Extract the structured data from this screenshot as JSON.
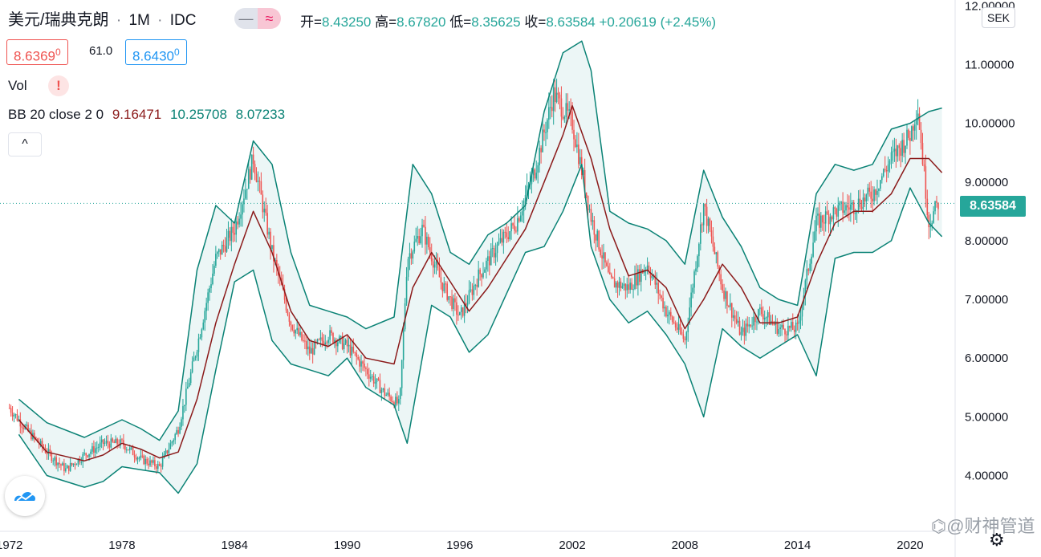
{
  "header": {
    "symbol": "美元/瑞典克朗",
    "interval": "1M",
    "source": "IDC",
    "separator": "·"
  },
  "ohlc": {
    "open_label": "开=",
    "open": "8.43250",
    "high_label": "高=",
    "high": "8.67820",
    "low_label": "低=",
    "low": "8.35625",
    "close_label": "收=",
    "close": "8.63584",
    "change": "+0.20619",
    "change_pct": "(+2.45%)"
  },
  "quote": {
    "bid": "8.6369",
    "bid_sup": "0",
    "spread": "61.0",
    "ask": "8.6430",
    "ask_sup": "0"
  },
  "volume": {
    "label": "Vol",
    "warning": "!"
  },
  "bb_legend": {
    "label": "BB 20 close 2 0",
    "middle": "9.16471",
    "upper": "10.25708",
    "lower": "8.07233"
  },
  "controls": {
    "collapse": "^",
    "toggle_left": "—",
    "toggle_right": "≈"
  },
  "axis": {
    "currency": "SEK",
    "last_price_label": "8.63584",
    "settings_icon": "gear-icon",
    "logo_icon": "tradingview-logo-icon"
  },
  "watermark": "⌬@财神管道",
  "colors": {
    "up": "#26a69a",
    "down": "#ef5350",
    "bb_middle": "#8b1a1a",
    "bb_band": "#0a8275",
    "bb_fill": "#e9f4f5"
  },
  "chart_data": {
    "type": "candlestick",
    "xlabel": "",
    "ylabel": "",
    "x_ticks": [
      "1972",
      "1978",
      "1984",
      "1990",
      "1996",
      "2002",
      "2008",
      "2014",
      "2020"
    ],
    "y_ticks": [
      "4.00000",
      "5.00000",
      "6.00000",
      "7.00000",
      "8.00000",
      "9.00000",
      "10.00000",
      "11.00000",
      "12.00000"
    ],
    "xlim": [
      1971.5,
      2022.4
    ],
    "ylim": [
      3.05,
      12.1
    ],
    "last_price": 8.63584,
    "series": [
      {
        "name": "price",
        "points": [
          [
            1972.0,
            5.15
          ],
          [
            1973.0,
            4.75
          ],
          [
            1974.0,
            4.4
          ],
          [
            1975.0,
            4.1
          ],
          [
            1976.0,
            4.35
          ],
          [
            1977.0,
            4.55
          ],
          [
            1978.0,
            4.55
          ],
          [
            1979.0,
            4.28
          ],
          [
            1980.0,
            4.15
          ],
          [
            1981.0,
            4.8
          ],
          [
            1982.0,
            6.2
          ],
          [
            1983.0,
            7.7
          ],
          [
            1984.0,
            8.2
          ],
          [
            1985.0,
            9.4
          ],
          [
            1986.0,
            7.8
          ],
          [
            1987.0,
            6.6
          ],
          [
            1988.0,
            6.1
          ],
          [
            1989.0,
            6.4
          ],
          [
            1990.0,
            6.2
          ],
          [
            1991.0,
            5.8
          ],
          [
            1992.0,
            5.4
          ],
          [
            1992.8,
            5.2
          ],
          [
            1993.2,
            7.7
          ],
          [
            1994.0,
            8.2
          ],
          [
            1995.0,
            7.3
          ],
          [
            1996.0,
            6.7
          ],
          [
            1997.0,
            7.4
          ],
          [
            1998.0,
            7.9
          ],
          [
            1999.0,
            8.3
          ],
          [
            2000.0,
            9.2
          ],
          [
            2001.0,
            10.5
          ],
          [
            2002.0,
            10.0
          ],
          [
            2003.0,
            8.4
          ],
          [
            2004.0,
            7.3
          ],
          [
            2005.0,
            7.2
          ],
          [
            2006.0,
            7.6
          ],
          [
            2007.0,
            6.8
          ],
          [
            2008.0,
            6.3
          ],
          [
            2009.0,
            8.6
          ],
          [
            2010.0,
            7.2
          ],
          [
            2011.0,
            6.4
          ],
          [
            2012.0,
            6.8
          ],
          [
            2013.0,
            6.5
          ],
          [
            2014.0,
            6.5
          ],
          [
            2015.0,
            8.3
          ],
          [
            2016.0,
            8.5
          ],
          [
            2017.0,
            8.6
          ],
          [
            2018.0,
            8.8
          ],
          [
            2019.0,
            9.4
          ],
          [
            2020.0,
            9.8
          ],
          [
            2020.4,
            10.3
          ],
          [
            2021.0,
            8.3
          ],
          [
            2021.5,
            8.64
          ]
        ]
      },
      {
        "name": "bb_middle",
        "points": [
          [
            1972.5,
            4.95
          ],
          [
            1974.0,
            4.4
          ],
          [
            1976.0,
            4.25
          ],
          [
            1977.0,
            4.35
          ],
          [
            1978.0,
            4.55
          ],
          [
            1979.0,
            4.45
          ],
          [
            1980.0,
            4.3
          ],
          [
            1981.0,
            4.4
          ],
          [
            1982.0,
            5.3
          ],
          [
            1983.0,
            6.6
          ],
          [
            1984.0,
            7.6
          ],
          [
            1985.0,
            8.5
          ],
          [
            1986.0,
            7.8
          ],
          [
            1987.0,
            6.8
          ],
          [
            1988.0,
            6.3
          ],
          [
            1989.0,
            6.2
          ],
          [
            1990.0,
            6.4
          ],
          [
            1991.0,
            6.0
          ],
          [
            1992.5,
            5.9
          ],
          [
            1993.5,
            7.2
          ],
          [
            1994.5,
            7.8
          ],
          [
            1995.5,
            7.3
          ],
          [
            1996.5,
            6.8
          ],
          [
            1997.5,
            7.2
          ],
          [
            1998.5,
            7.7
          ],
          [
            1999.5,
            8.2
          ],
          [
            2000.5,
            9.0
          ],
          [
            2001.5,
            9.8
          ],
          [
            2002.0,
            10.3
          ],
          [
            2003.0,
            9.4
          ],
          [
            2004.0,
            8.2
          ],
          [
            2005.0,
            7.4
          ],
          [
            2006.0,
            7.5
          ],
          [
            2007.0,
            7.2
          ],
          [
            2008.0,
            6.5
          ],
          [
            2009.0,
            7.0
          ],
          [
            2010.0,
            7.6
          ],
          [
            2011.0,
            7.2
          ],
          [
            2012.0,
            6.6
          ],
          [
            2013.0,
            6.6
          ],
          [
            2014.0,
            6.7
          ],
          [
            2015.0,
            7.6
          ],
          [
            2016.0,
            8.3
          ],
          [
            2017.0,
            8.5
          ],
          [
            2018.0,
            8.5
          ],
          [
            2019.0,
            8.8
          ],
          [
            2020.0,
            9.4
          ],
          [
            2021.0,
            9.4
          ],
          [
            2021.7,
            9.16
          ]
        ]
      },
      {
        "name": "bb_upper",
        "points": [
          [
            1972.5,
            5.3
          ],
          [
            1974.0,
            4.9
          ],
          [
            1976.0,
            4.65
          ],
          [
            1977.0,
            4.8
          ],
          [
            1978.0,
            4.95
          ],
          [
            1979.0,
            4.8
          ],
          [
            1980.0,
            4.6
          ],
          [
            1981.0,
            5.1
          ],
          [
            1982.0,
            7.5
          ],
          [
            1983.0,
            8.6
          ],
          [
            1984.0,
            8.3
          ],
          [
            1985.0,
            9.7
          ],
          [
            1986.0,
            9.3
          ],
          [
            1987.0,
            7.8
          ],
          [
            1988.0,
            6.9
          ],
          [
            1989.0,
            6.8
          ],
          [
            1990.0,
            6.7
          ],
          [
            1991.0,
            6.5
          ],
          [
            1992.5,
            6.7
          ],
          [
            1993.5,
            9.3
          ],
          [
            1994.5,
            8.8
          ],
          [
            1995.5,
            7.8
          ],
          [
            1996.5,
            7.6
          ],
          [
            1997.5,
            8.1
          ],
          [
            1998.5,
            8.3
          ],
          [
            1999.5,
            8.6
          ],
          [
            2000.5,
            10.2
          ],
          [
            2001.5,
            11.2
          ],
          [
            2002.5,
            11.4
          ],
          [
            2003.0,
            10.9
          ],
          [
            2004.0,
            8.5
          ],
          [
            2005.0,
            8.3
          ],
          [
            2006.0,
            8.2
          ],
          [
            2007.0,
            8.0
          ],
          [
            2008.0,
            7.6
          ],
          [
            2009.0,
            9.2
          ],
          [
            2010.0,
            8.4
          ],
          [
            2011.0,
            7.9
          ],
          [
            2012.0,
            7.2
          ],
          [
            2013.0,
            7.0
          ],
          [
            2014.0,
            6.9
          ],
          [
            2015.0,
            8.8
          ],
          [
            2016.0,
            9.3
          ],
          [
            2017.0,
            9.2
          ],
          [
            2018.0,
            9.3
          ],
          [
            2019.0,
            9.9
          ],
          [
            2020.0,
            10.0
          ],
          [
            2021.0,
            10.2
          ],
          [
            2021.7,
            10.26
          ]
        ]
      },
      {
        "name": "bb_lower",
        "points": [
          [
            1972.5,
            4.7
          ],
          [
            1974.0,
            4.0
          ],
          [
            1976.0,
            3.8
          ],
          [
            1977.0,
            3.9
          ],
          [
            1978.0,
            4.15
          ],
          [
            1979.0,
            4.1
          ],
          [
            1980.0,
            4.05
          ],
          [
            1981.0,
            3.7
          ],
          [
            1982.0,
            4.2
          ],
          [
            1983.0,
            5.8
          ],
          [
            1984.0,
            7.3
          ],
          [
            1985.0,
            7.5
          ],
          [
            1986.0,
            6.3
          ],
          [
            1987.0,
            5.9
          ],
          [
            1988.0,
            5.8
          ],
          [
            1989.0,
            5.7
          ],
          [
            1990.0,
            6.0
          ],
          [
            1991.0,
            5.5
          ],
          [
            1992.5,
            5.2
          ],
          [
            1993.2,
            4.55
          ],
          [
            1994.5,
            6.9
          ],
          [
            1995.5,
            6.7
          ],
          [
            1996.5,
            6.1
          ],
          [
            1997.5,
            6.4
          ],
          [
            1998.5,
            7.1
          ],
          [
            1999.5,
            7.8
          ],
          [
            2000.5,
            7.9
          ],
          [
            2001.5,
            8.5
          ],
          [
            2002.5,
            9.3
          ],
          [
            2003.0,
            7.9
          ],
          [
            2004.0,
            7.0
          ],
          [
            2005.0,
            6.6
          ],
          [
            2006.0,
            6.8
          ],
          [
            2007.0,
            6.4
          ],
          [
            2008.0,
            5.9
          ],
          [
            2009.0,
            5.0
          ],
          [
            2010.0,
            6.5
          ],
          [
            2011.0,
            6.2
          ],
          [
            2012.0,
            6.0
          ],
          [
            2013.0,
            6.2
          ],
          [
            2014.0,
            6.4
          ],
          [
            2015.0,
            5.7
          ],
          [
            2016.0,
            7.7
          ],
          [
            2017.0,
            7.8
          ],
          [
            2018.0,
            7.8
          ],
          [
            2019.0,
            8.0
          ],
          [
            2020.0,
            8.9
          ],
          [
            2021.0,
            8.3
          ],
          [
            2021.7,
            8.07
          ]
        ]
      }
    ]
  }
}
